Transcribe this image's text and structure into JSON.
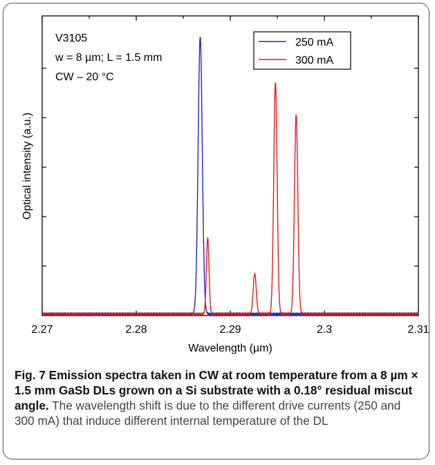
{
  "chart_data": {
    "type": "line",
    "xlabel": "Wavelength (µm)",
    "ylabel": "Optical intensity (a.u.)",
    "xlim": [
      2.27,
      2.31
    ],
    "ylim": [
      0,
      1.08
    ],
    "x_ticks": [
      "2.27",
      "2.28",
      "2.29",
      "2.3",
      "2.31"
    ],
    "annotations": {
      "sample": "V3105",
      "dimensions": "w = 8 µm; L = 1.5 mm",
      "conditions": "CW – 20 °C"
    },
    "legend_position": "top-right",
    "series": [
      {
        "name": "250 mA",
        "color": "#1f24d6",
        "peaks": [
          {
            "x": 2.2868,
            "height": 1.0,
            "width": 0.00022
          }
        ],
        "baseline": 0.006
      },
      {
        "name": "300 mA",
        "color": "#e01b1b",
        "peaks": [
          {
            "x": 2.2876,
            "height": 0.274,
            "width": 0.00014
          },
          {
            "x": 2.2926,
            "height": 0.145,
            "width": 0.00016
          },
          {
            "x": 2.2948,
            "height": 0.835,
            "width": 0.00018
          },
          {
            "x": 2.297,
            "height": 0.719,
            "width": 0.00018
          }
        ],
        "baseline": 0.006
      }
    ]
  },
  "caption": {
    "bold": "Fig. 7 Emission spectra taken in CW at room temperature from a 8 µm × 1.5 mm GaSb DLs grown on a Si substrate with a 0.18° residual miscut angle.",
    "body": "The wavelength shift is due to the different drive currents (250 and 300 mA) that induce different internal temperature of the DL"
  }
}
